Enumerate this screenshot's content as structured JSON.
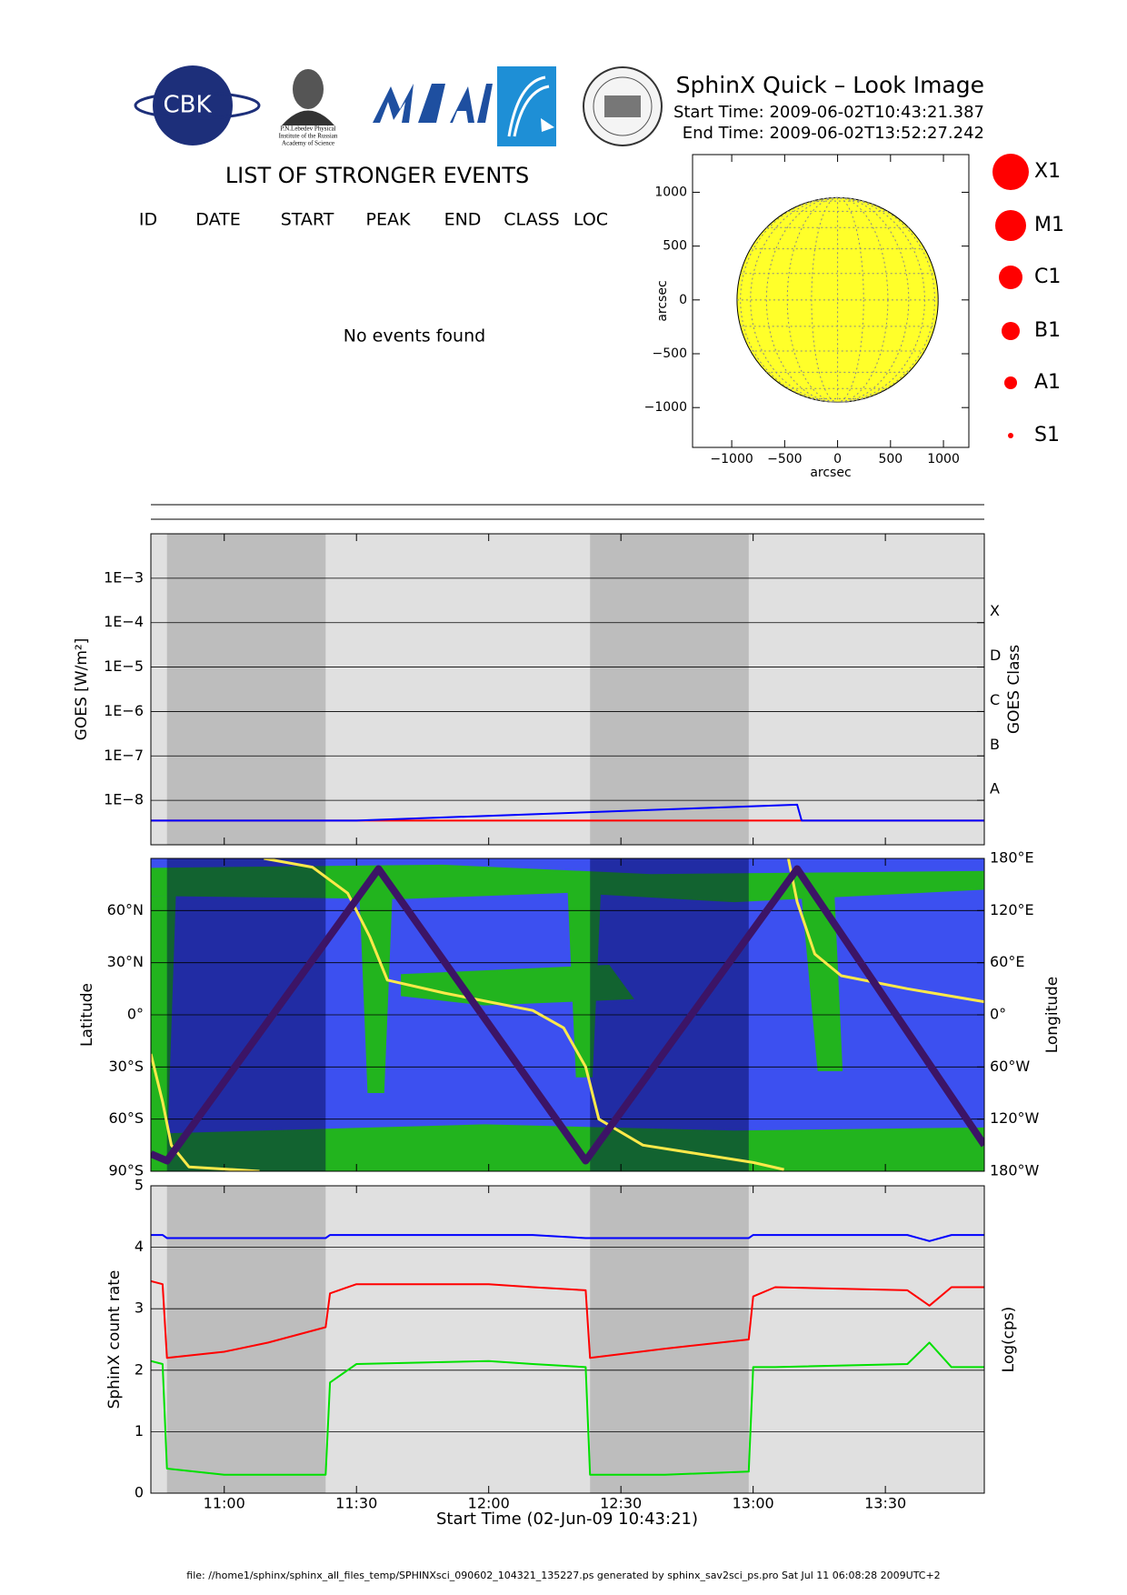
{
  "header": {
    "title": "SphinX Quick – Look Image",
    "start_time": "Start Time: 2009-06-02T10:43:21.387",
    "end_time": "End Time: 2009-06-02T13:52:27.242",
    "logos": {
      "cbk": "CBK",
      "lebedev": [
        "P.N.Lebedev Physical",
        "Institute of the Russian",
        "Academy of Science"
      ]
    }
  },
  "events": {
    "title": "LIST OF STRONGER EVENTS",
    "columns": [
      "ID",
      "DATE",
      "START",
      "PEAK",
      "END",
      "CLASS",
      "LOC"
    ],
    "message": "No events found"
  },
  "time_axis": {
    "xlim": [
      "10:43:21",
      "13:52:27"
    ],
    "xticks": [
      "11:00",
      "11:30",
      "12:00",
      "12:30",
      "13:00",
      "13:30"
    ],
    "xlabel": "Start Time (02-Jun-09 10:43:21)"
  },
  "shaded_intervals": [
    [
      "10:47",
      "11:23"
    ],
    [
      "12:23",
      "12:59"
    ]
  ],
  "chart_data": [
    {
      "type": "map",
      "xlabel": "arcsec",
      "ylabel": "arcsec",
      "xlim": [
        -1370,
        1240
      ],
      "ylim": [
        -1370,
        1350
      ],
      "xticks": [
        {
          "value": -1000,
          "label": "−1000"
        },
        {
          "value": -500,
          "label": "−500"
        },
        0,
        500,
        1000
      ],
      "yticks": [
        {
          "value": -1000,
          "label": "−1000"
        },
        {
          "value": -500,
          "label": "−500"
        },
        0,
        500,
        1000
      ],
      "solar_radius": 950,
      "color": "#ffff2a",
      "legend": [
        "X1",
        "M1",
        "C1",
        "B1",
        "A1",
        "S1"
      ],
      "legend_color": "#ff0000"
    },
    {
      "type": "line",
      "ylabel": "GOES [W/m²]",
      "y2label": "GOES Class",
      "yscale": "log",
      "ylim": [
        1e-09,
        0.01
      ],
      "yticks": [
        {
          "value": 1e-08,
          "label": "1E−8"
        },
        {
          "value": 1e-07,
          "label": "1E−7"
        },
        {
          "value": 1e-06,
          "label": "1E−6"
        },
        {
          "value": 1e-05,
          "label": "1E−5"
        },
        {
          "value": 0.0001,
          "label": "1E−4"
        },
        {
          "value": 0.001,
          "label": "1E−3"
        }
      ],
      "y2lim": [
        1e-09,
        0.01
      ],
      "y2ticks": [
        {
          "value": 1e-08,
          "label": "A"
        },
        {
          "value": 1e-07,
          "label": "B"
        },
        {
          "value": 1e-06,
          "label": "C"
        },
        {
          "value": 1e-05,
          "label": "D"
        },
        {
          "value": 0.0001,
          "label": "X"
        }
      ],
      "background": "#e0e0e0",
      "shade": "#bdbdbd",
      "x": [
        "10:43:21",
        "11:30",
        "13:10",
        "13:11",
        "13:52:27"
      ],
      "series": [
        {
          "color": "#ff0000",
          "values": [
            3.5e-09,
            3.5e-09,
            3.5e-09,
            3.5e-09,
            3.5e-09
          ]
        },
        {
          "color": "#0000ff",
          "values": [
            3.5e-09,
            3.5e-09,
            8e-09,
            3.5e-09,
            3.5e-09
          ]
        }
      ]
    },
    {
      "type": "line",
      "ylabel": "Latitude",
      "y2label": "Longitude",
      "ylim": [
        -90,
        90
      ],
      "yticks": [
        {
          "value": -90,
          "label": "90°S"
        },
        {
          "value": -60,
          "label": "60°S"
        },
        {
          "value": -30,
          "label": "30°S"
        },
        {
          "value": 0,
          "label": "0°"
        },
        {
          "value": 30,
          "label": "30°N"
        },
        {
          "value": 60,
          "label": "60°N"
        }
      ],
      "y2lim": [
        -180,
        180
      ],
      "y2ticks": [
        {
          "value": -180,
          "label": "180°W"
        },
        {
          "value": -120,
          "label": "120°W"
        },
        {
          "value": -60,
          "label": "60°W"
        },
        {
          "value": 0,
          "label": "0°"
        },
        {
          "value": 60,
          "label": "60°E"
        },
        {
          "value": 120,
          "label": "120°E"
        },
        {
          "value": 180,
          "label": "180°E"
        }
      ],
      "background": "#3c50f0",
      "shade": "rgba(0,0,70,0.45)",
      "series": [
        {
          "color": "#ffe94a",
          "axis": "y2",
          "x": [
            "10:43:21",
            "10:46",
            "10:48",
            "10:52",
            "11:08",
            "11:08:30",
            "11:09",
            "11:20",
            "11:28",
            "11:33",
            "11:37",
            "11:50",
            "12:10",
            "12:17",
            "12:22",
            "12:25",
            "12:35",
            "13:00",
            "13:07",
            "13:07:30",
            "13:08",
            "13:10",
            "13:14",
            "13:20",
            "13:35",
            "13:52:27"
          ],
          "values": [
            -45,
            -100,
            -150,
            -175,
            -180,
            null,
            180,
            170,
            140,
            90,
            40,
            25,
            5,
            -15,
            -60,
            -120,
            -150,
            -170,
            -178,
            null,
            180,
            130,
            70,
            45,
            30,
            15
          ]
        },
        {
          "color": "#3c1466",
          "x": [
            "10:43:21",
            "10:47",
            "11:35",
            "12:22",
            "13:10",
            "13:52:27"
          ],
          "values": [
            -80,
            -84,
            84,
            -84,
            84,
            -75
          ]
        }
      ]
    },
    {
      "type": "line",
      "ylabel": "SphinX count rate",
      "y2label": "Log(cps)",
      "ylim": [
        0,
        5
      ],
      "yticks": [
        0,
        1,
        2,
        3,
        4,
        5
      ],
      "background": "#e0e0e0",
      "shade": "#bdbdbd",
      "x": [
        "10:43:21",
        "10:46",
        "10:47",
        "11:00",
        "11:10",
        "11:23",
        "11:24",
        "11:30",
        "12:00",
        "12:10",
        "12:22",
        "12:23",
        "12:40",
        "12:59",
        "13:00",
        "13:05",
        "13:35",
        "13:40",
        "13:45",
        "13:52:27"
      ],
      "series": [
        {
          "color": "#0000ff",
          "values": [
            4.2,
            4.2,
            4.15,
            4.15,
            4.15,
            4.15,
            4.2,
            4.2,
            4.2,
            4.2,
            4.15,
            4.15,
            4.15,
            4.15,
            4.2,
            4.2,
            4.2,
            4.1,
            4.2,
            4.2
          ]
        },
        {
          "color": "#ff0000",
          "values": [
            3.45,
            3.4,
            2.2,
            2.3,
            2.45,
            2.7,
            3.25,
            3.4,
            3.4,
            3.35,
            3.3,
            2.2,
            2.35,
            2.5,
            3.2,
            3.35,
            3.3,
            3.05,
            3.35,
            3.35
          ]
        },
        {
          "color": "#00e000",
          "values": [
            2.15,
            2.1,
            0.4,
            0.3,
            0.3,
            0.3,
            1.8,
            2.1,
            2.15,
            2.1,
            2.05,
            0.3,
            0.3,
            0.35,
            2.05,
            2.05,
            2.1,
            2.45,
            2.05,
            2.05
          ]
        }
      ]
    }
  ],
  "footer": "file: //home1/sphinx/sphinx_all_files_temp/SPHINXsci_090602_104321_135227.ps generated by sphinx_sav2sci_ps.pro Sat Jul 11 06:08:28 2009UTC+2"
}
